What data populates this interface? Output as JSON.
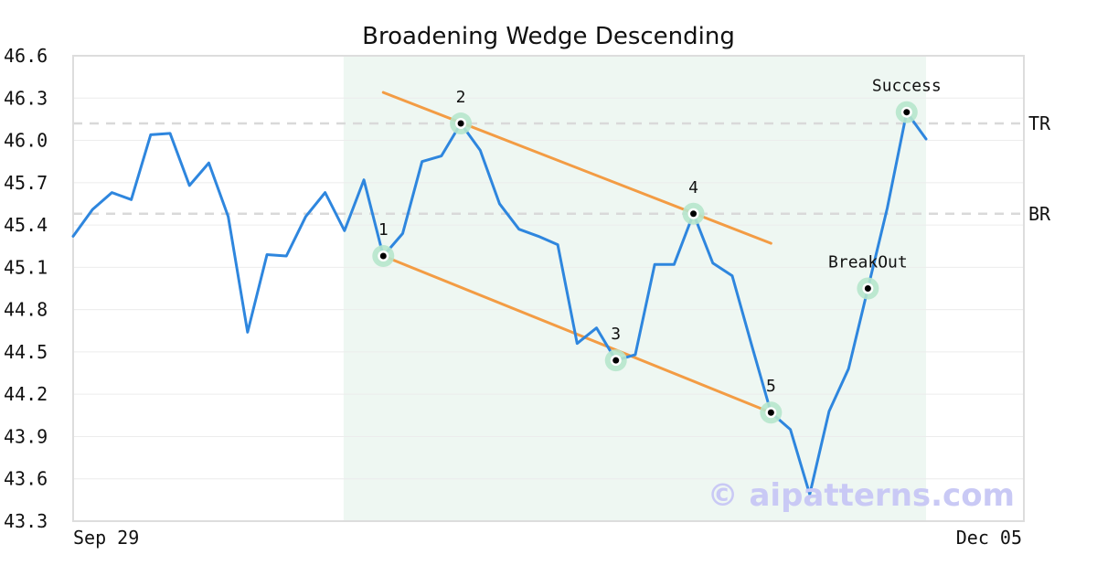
{
  "chart_data": {
    "type": "line",
    "title": "Broadening Wedge Descending",
    "x_start_label": "Sep 29",
    "x_end_label": "Dec 05",
    "ylim": [
      43.3,
      46.6
    ],
    "yticks": [
      "46.6",
      "46.3",
      "46.0",
      "45.7",
      "45.4",
      "45.1",
      "44.8",
      "44.5",
      "44.2",
      "43.9",
      "43.6",
      "43.3"
    ],
    "series": [
      {
        "values": [
          45.32,
          45.51,
          45.63,
          45.58,
          46.04,
          46.05,
          45.68,
          45.84,
          45.46,
          44.64,
          45.19,
          45.18,
          45.46,
          45.63,
          45.36,
          45.72,
          45.18,
          45.34,
          45.85,
          45.89,
          46.12,
          45.93,
          45.55,
          45.37,
          45.32,
          45.26,
          44.56,
          44.67,
          44.44,
          44.48,
          45.12,
          45.12,
          45.48,
          45.13,
          45.04,
          44.55,
          44.07,
          43.95,
          43.49,
          44.08,
          44.38,
          44.95,
          45.52,
          46.2,
          46.01
        ]
      }
    ],
    "reference_lines": [
      {
        "label": "TR",
        "value": 46.12
      },
      {
        "label": "BR",
        "value": 45.48
      }
    ],
    "pattern_region": {
      "start_index": 14,
      "end_index": 44
    },
    "trendlines": [
      {
        "from": [
          16,
          45.18
        ],
        "to": [
          36,
          44.07
        ]
      },
      {
        "from": [
          16,
          46.34
        ],
        "to": [
          36,
          45.27
        ]
      }
    ],
    "points": [
      {
        "label": "1",
        "index": 16,
        "value": 45.18
      },
      {
        "label": "2",
        "index": 20,
        "value": 46.12
      },
      {
        "label": "3",
        "index": 28,
        "value": 44.44
      },
      {
        "label": "4",
        "index": 32,
        "value": 45.48
      },
      {
        "label": "5",
        "index": 36,
        "value": 44.07
      },
      {
        "label": "BreakOut",
        "index": 41,
        "value": 44.95
      },
      {
        "label": "Success",
        "index": 43,
        "value": 46.2
      }
    ],
    "watermark": "© aipatterns.com",
    "colors": {
      "line": "#2e86de",
      "trendline": "#f39c44",
      "region": "#eef7f2",
      "marker_halo": "#b6e6cc",
      "reference": "#d9d9d9"
    }
  }
}
